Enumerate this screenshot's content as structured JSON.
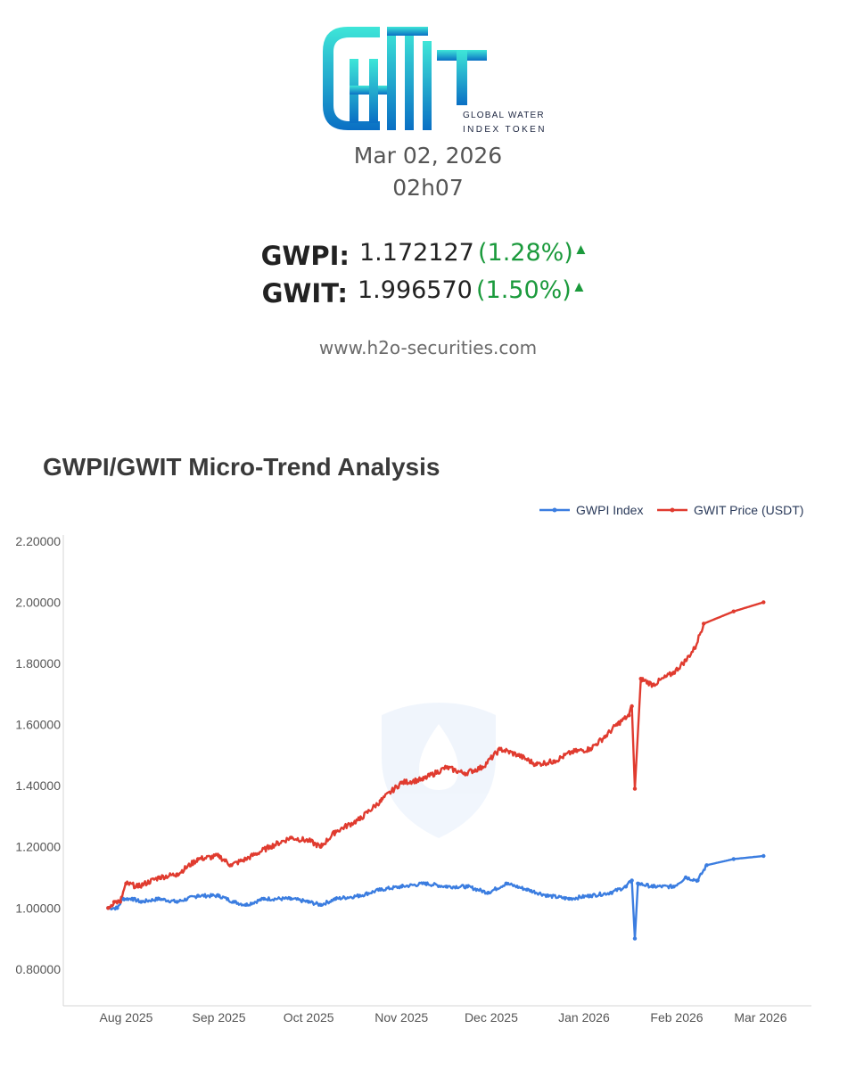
{
  "header": {
    "logo_line1": "GLOBAL WATER",
    "logo_line2": "INDEX TOKEN",
    "date": "Mar 02, 2026",
    "time": "02h07",
    "website": "www.h2o-securities.com"
  },
  "quotes": [
    {
      "label": "GWPI:",
      "value": "1.172127",
      "change": "(1.28%)",
      "direction": "up"
    },
    {
      "label": "GWIT:",
      "value": "1.996570",
      "change": "(1.50%)",
      "direction": "up"
    }
  ],
  "colors": {
    "gwpi": "#3b7de0",
    "gwit": "#e03b2f",
    "positive": "#1b9a3c",
    "logo_top": "#3ee6d8",
    "logo_bottom": "#0a6fc4"
  },
  "chart_data": {
    "type": "line",
    "title": "GWPI/GWIT Micro-Trend Analysis",
    "ylim": [
      0.68,
      2.22
    ],
    "xlim": [
      "2025-07-11",
      "2026-03-18"
    ],
    "grid": false,
    "legend": "top-right",
    "y_ticks": [
      "2.20000",
      "2.00000",
      "1.80000",
      "1.60000",
      "1.40000",
      "1.20000",
      "1.00000",
      "0.80000"
    ],
    "x_ticks": [
      {
        "date": "2025-08-01",
        "label": "Aug 2025"
      },
      {
        "date": "2025-09-01",
        "label": "Sep 2025"
      },
      {
        "date": "2025-10-01",
        "label": "Oct 2025"
      },
      {
        "date": "2025-11-01",
        "label": "Nov 2025"
      },
      {
        "date": "2025-12-01",
        "label": "Dec 2025"
      },
      {
        "date": "2026-01-01",
        "label": "Jan 2026"
      },
      {
        "date": "2026-02-01",
        "label": "Feb 2026"
      },
      {
        "date": "2026-03-01",
        "label": "Mar 2026"
      }
    ],
    "series": [
      {
        "name": "GWPI Index",
        "points": [
          [
            "2025-07-26",
            1.0
          ],
          [
            "2025-07-29",
            1.0
          ],
          [
            "2025-07-31",
            1.03
          ],
          [
            "2025-08-03",
            1.03
          ],
          [
            "2025-08-06",
            1.02
          ],
          [
            "2025-08-12",
            1.03
          ],
          [
            "2025-08-18",
            1.02
          ],
          [
            "2025-08-25",
            1.04
          ],
          [
            "2025-09-01",
            1.04
          ],
          [
            "2025-09-06",
            1.02
          ],
          [
            "2025-09-10",
            1.01
          ],
          [
            "2025-09-16",
            1.03
          ],
          [
            "2025-09-25",
            1.03
          ],
          [
            "2025-10-01",
            1.02
          ],
          [
            "2025-10-05",
            1.01
          ],
          [
            "2025-10-10",
            1.03
          ],
          [
            "2025-10-18",
            1.04
          ],
          [
            "2025-10-25",
            1.06
          ],
          [
            "2025-11-01",
            1.07
          ],
          [
            "2025-11-09",
            1.08
          ],
          [
            "2025-11-16",
            1.07
          ],
          [
            "2025-11-23",
            1.07
          ],
          [
            "2025-11-30",
            1.05
          ],
          [
            "2025-12-06",
            1.08
          ],
          [
            "2025-12-13",
            1.06
          ],
          [
            "2025-12-20",
            1.04
          ],
          [
            "2025-12-27",
            1.03
          ],
          [
            "2026-01-03",
            1.04
          ],
          [
            "2026-01-10",
            1.05
          ],
          [
            "2026-01-15",
            1.07
          ],
          [
            "2026-01-17",
            1.09
          ],
          [
            "2026-01-18",
            0.9
          ],
          [
            "2026-01-19",
            1.08
          ],
          [
            "2026-01-24",
            1.07
          ],
          [
            "2026-01-31",
            1.07
          ],
          [
            "2026-02-04",
            1.1
          ],
          [
            "2026-02-08",
            1.09
          ],
          [
            "2026-02-11",
            1.14
          ],
          [
            "2026-02-20",
            1.16
          ],
          [
            "2026-03-02",
            1.17
          ]
        ]
      },
      {
        "name": "GWIT Price (USDT)",
        "points": [
          [
            "2025-07-26",
            1.0
          ],
          [
            "2025-07-28",
            1.02
          ],
          [
            "2025-07-30",
            1.02
          ],
          [
            "2025-08-01",
            1.08
          ],
          [
            "2025-08-05",
            1.07
          ],
          [
            "2025-08-12",
            1.1
          ],
          [
            "2025-08-18",
            1.11
          ],
          [
            "2025-08-25",
            1.16
          ],
          [
            "2025-09-01",
            1.17
          ],
          [
            "2025-09-05",
            1.14
          ],
          [
            "2025-09-10",
            1.16
          ],
          [
            "2025-09-18",
            1.2
          ],
          [
            "2025-09-25",
            1.23
          ],
          [
            "2025-10-01",
            1.22
          ],
          [
            "2025-10-05",
            1.2
          ],
          [
            "2025-10-10",
            1.25
          ],
          [
            "2025-10-18",
            1.29
          ],
          [
            "2025-10-25",
            1.35
          ],
          [
            "2025-11-01",
            1.41
          ],
          [
            "2025-11-08",
            1.42
          ],
          [
            "2025-11-16",
            1.46
          ],
          [
            "2025-11-22",
            1.44
          ],
          [
            "2025-11-28",
            1.46
          ],
          [
            "2025-12-04",
            1.52
          ],
          [
            "2025-12-10",
            1.5
          ],
          [
            "2025-12-16",
            1.47
          ],
          [
            "2025-12-22",
            1.48
          ],
          [
            "2025-12-28",
            1.51
          ],
          [
            "2026-01-03",
            1.52
          ],
          [
            "2026-01-08",
            1.56
          ],
          [
            "2026-01-12",
            1.6
          ],
          [
            "2026-01-16",
            1.63
          ],
          [
            "2026-01-17",
            1.66
          ],
          [
            "2026-01-18",
            1.39
          ],
          [
            "2026-01-20",
            1.75
          ],
          [
            "2026-01-24",
            1.73
          ],
          [
            "2026-01-31",
            1.77
          ],
          [
            "2026-02-04",
            1.81
          ],
          [
            "2026-02-07",
            1.85
          ],
          [
            "2026-02-10",
            1.93
          ],
          [
            "2026-02-20",
            1.97
          ],
          [
            "2026-03-02",
            2.0
          ]
        ]
      }
    ]
  }
}
